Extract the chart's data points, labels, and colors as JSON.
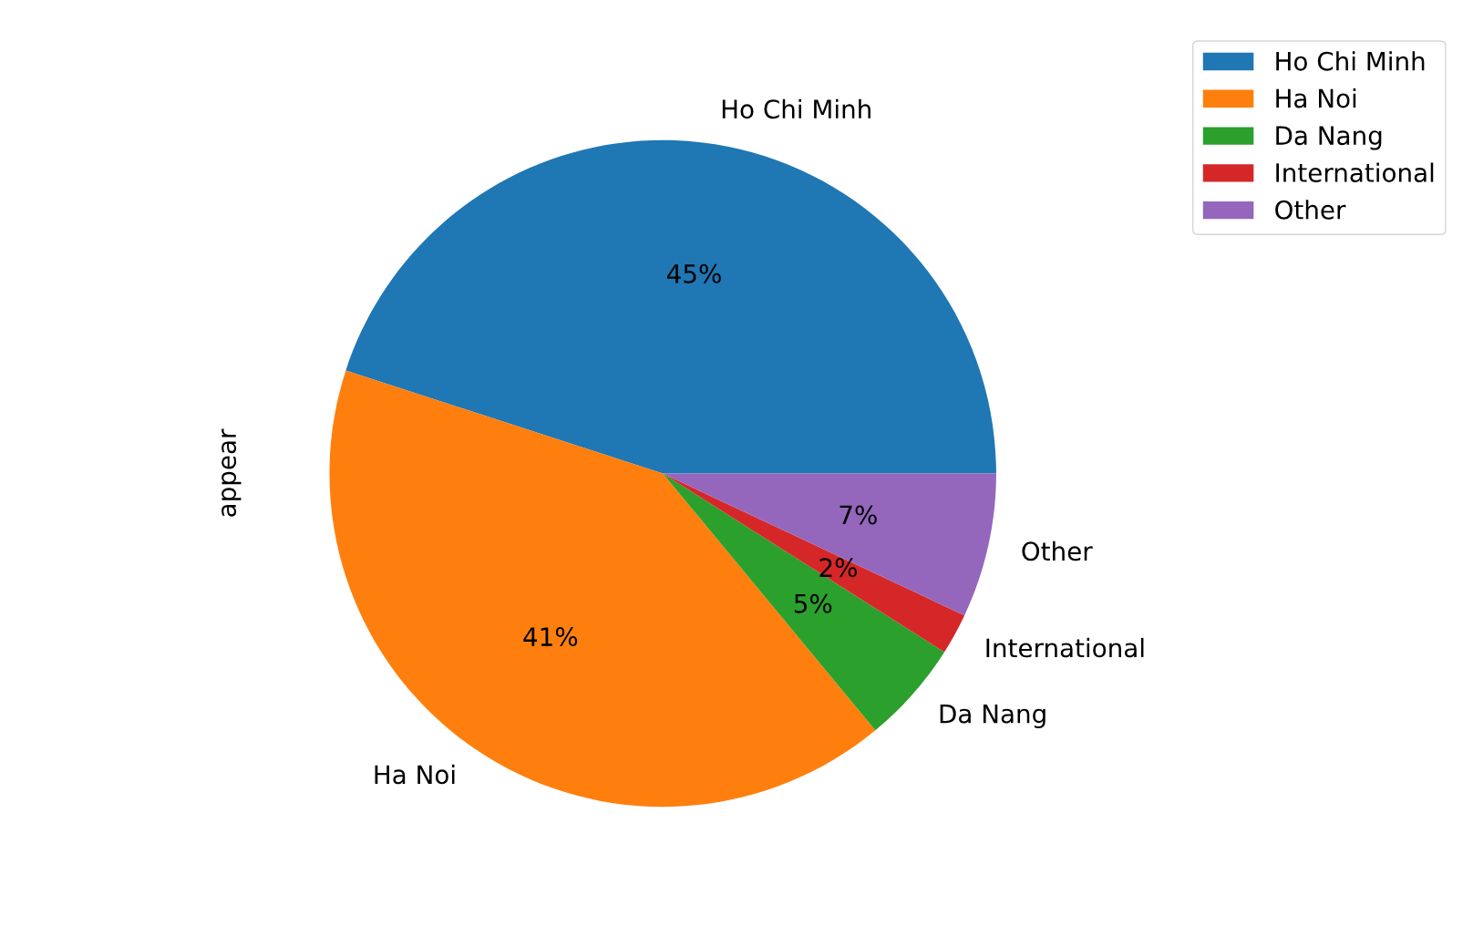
{
  "chart_data": {
    "type": "pie",
    "ylabel": "appear",
    "categories": [
      "Ho Chi Minh",
      "Ha Noi",
      "Da Nang",
      "International",
      "Other"
    ],
    "values": [
      45,
      41,
      5,
      2,
      7
    ],
    "colors": [
      "#1f77b4",
      "#ff7f0e",
      "#2ca02c",
      "#d62728",
      "#9467bd"
    ],
    "value_labels": [
      "45%",
      "41%",
      "5%",
      "2%",
      "7%"
    ],
    "legend": "top right"
  }
}
